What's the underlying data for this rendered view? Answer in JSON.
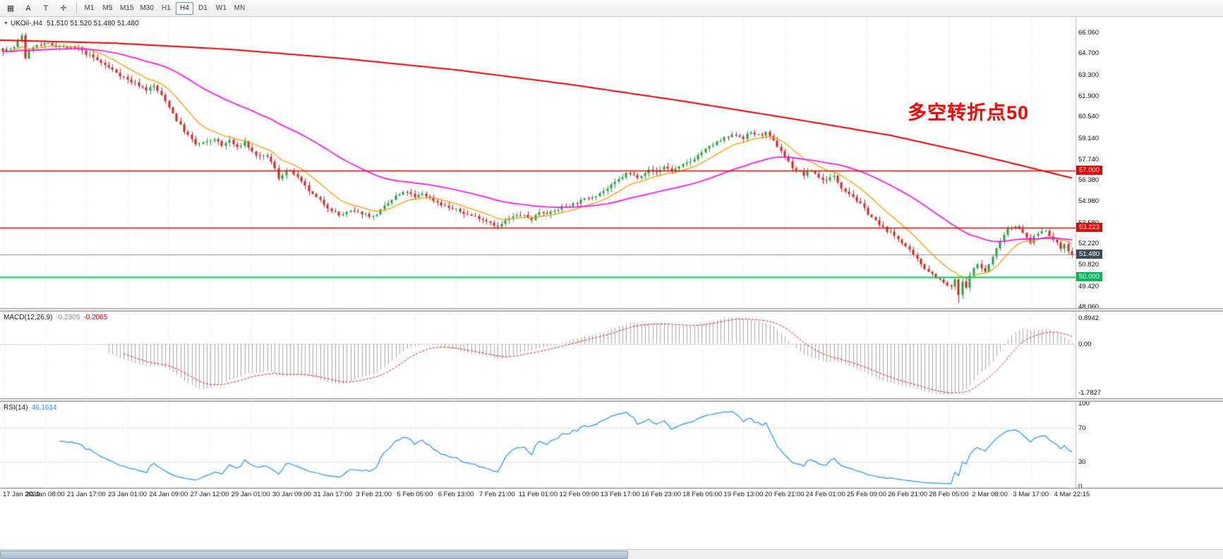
{
  "toolbar": {
    "tools": [
      {
        "name": "chart-windows-icon",
        "glyph": "▦"
      },
      {
        "name": "cursor-tool-icon",
        "glyph": "A"
      },
      {
        "name": "text-tool-icon",
        "glyph": "T"
      },
      {
        "name": "crosshair-tool-icon",
        "glyph": "✛"
      }
    ],
    "timeframes": [
      "M1",
      "M5",
      "M15",
      "M30",
      "H1",
      "H4",
      "D1",
      "W1",
      "MN"
    ],
    "active_timeframe": "H4"
  },
  "chart": {
    "dropdown_glyph": "▼",
    "symbol_header": "UKOil-,H4",
    "ohlc": "51.510 51.520 51.480 51.480",
    "annotation": {
      "text": "多空转折点50",
      "color": "#ff0000"
    },
    "price_axis": [
      "66.060",
      "64.700",
      "63.300",
      "61.900",
      "60.540",
      "59.140",
      "57.740",
      "56.380",
      "54.980",
      "53.580",
      "52.220",
      "50.820",
      "49.420",
      "48.060"
    ],
    "levels": [
      {
        "value": 57.0,
        "label": "57.000",
        "color": "#e80000"
      },
      {
        "value": 53.223,
        "label": "53.223",
        "color": "#e80000"
      },
      {
        "value": 51.48,
        "label": "51.480",
        "color": "#3c4c5a"
      },
      {
        "value": 50.0,
        "label": "50.000",
        "color": "#00b85c"
      }
    ]
  },
  "macd": {
    "header": "MACD(12,26,9)",
    "value1": "-0.2305",
    "value2": "-0.2065",
    "axis_top": "0.8942",
    "axis_zero": "0.00",
    "axis_bottom": "-1.7827"
  },
  "rsi": {
    "header": "RSI(14)",
    "value": "46.1614",
    "axis": [
      "100",
      "70",
      "30",
      "0"
    ],
    "levels": [
      70,
      30
    ]
  },
  "time_axis": {
    "labels": [
      "17 Jan 2020",
      "20 Jan 08:00",
      "21 Jan 17:00",
      "23 Jan 01:00",
      "24 Jan 09:00",
      "27 Jan 12:00",
      "29 Jan 01:00",
      "30 Jan 09:00",
      "31 Jan 17:00",
      "3 Feb 21:00",
      "5 Feb 05:00",
      "6 Feb 13:00",
      "7 Feb 21:00",
      "11 Feb 01:00",
      "12 Feb 09:00",
      "13 Feb 17:00",
      "16 Feb 23:00",
      "18 Feb 05:00",
      "19 Feb 13:00",
      "20 Feb 21:00",
      "24 Feb 01:00",
      "25 Feb 09:00",
      "26 Feb 21:00",
      "28 Feb 05:00",
      "2 Mar 08:00",
      "3 Mar 17:00",
      "4 Mar 22:15"
    ]
  },
  "chart_data": {
    "type": "candlestick",
    "symbol": "UKOil-",
    "timeframe": "H4",
    "bars": 284,
    "price_range": [
      48.06,
      66.06
    ],
    "current_price": 51.48,
    "horizontal_lines": [
      57.0,
      53.223,
      50.0
    ],
    "close_anchors": [
      [
        0,
        64.9
      ],
      [
        3,
        65.05
      ],
      [
        5,
        65.9
      ],
      [
        6,
        64.4
      ],
      [
        8,
        65.15
      ],
      [
        12,
        65.3
      ],
      [
        16,
        65.1
      ],
      [
        20,
        64.95
      ],
      [
        24,
        64.4
      ],
      [
        27,
        63.9
      ],
      [
        30,
        63.45
      ],
      [
        33,
        62.95
      ],
      [
        36,
        62.6
      ],
      [
        38,
        62.3
      ],
      [
        40,
        62.55
      ],
      [
        42,
        61.9
      ],
      [
        44,
        61.2
      ],
      [
        46,
        60.3
      ],
      [
        48,
        59.6
      ],
      [
        51,
        58.7
      ],
      [
        54,
        58.85
      ],
      [
        56,
        59.1
      ],
      [
        58,
        58.6
      ],
      [
        60,
        59.0
      ],
      [
        62,
        58.45
      ],
      [
        64,
        58.9
      ],
      [
        66,
        58.2
      ],
      [
        68,
        57.85
      ],
      [
        70,
        57.95
      ],
      [
        72,
        57.1
      ],
      [
        73,
        56.5
      ],
      [
        75,
        57.0
      ],
      [
        77,
        56.8
      ],
      [
        79,
        56.2
      ],
      [
        82,
        55.4
      ],
      [
        86,
        54.6
      ],
      [
        89,
        54.05
      ],
      [
        92,
        54.3
      ],
      [
        95,
        54.2
      ],
      [
        98,
        53.95
      ],
      [
        101,
        54.6
      ],
      [
        104,
        55.3
      ],
      [
        107,
        55.6
      ],
      [
        109,
        55.2
      ],
      [
        111,
        55.5
      ],
      [
        114,
        55.05
      ],
      [
        117,
        54.65
      ],
      [
        120,
        54.4
      ],
      [
        123,
        54.1
      ],
      [
        126,
        53.9
      ],
      [
        129,
        53.6
      ],
      [
        131,
        53.3
      ],
      [
        134,
        53.85
      ],
      [
        137,
        54.1
      ],
      [
        140,
        53.8
      ],
      [
        142,
        54.3
      ],
      [
        145,
        54.2
      ],
      [
        148,
        54.6
      ],
      [
        151,
        54.8
      ],
      [
        154,
        55.1
      ],
      [
        157,
        55.4
      ],
      [
        160,
        55.8
      ],
      [
        163,
        56.4
      ],
      [
        165,
        56.8
      ],
      [
        168,
        56.6
      ],
      [
        171,
        57.0
      ],
      [
        173,
        56.9
      ],
      [
        175,
        57.25
      ],
      [
        177,
        57.0
      ],
      [
        179,
        57.2
      ],
      [
        182,
        57.6
      ],
      [
        185,
        58.2
      ],
      [
        188,
        58.7
      ],
      [
        191,
        59.1
      ],
      [
        194,
        59.35
      ],
      [
        196,
        59.15
      ],
      [
        198,
        59.5
      ],
      [
        200,
        59.3
      ],
      [
        202,
        59.45
      ],
      [
        204,
        58.9
      ],
      [
        206,
        58.3
      ],
      [
        209,
        57.2
      ],
      [
        212,
        56.7
      ],
      [
        214,
        57.0
      ],
      [
        217,
        56.35
      ],
      [
        220,
        56.6
      ],
      [
        222,
        55.9
      ],
      [
        225,
        55.3
      ],
      [
        229,
        54.2
      ],
      [
        232,
        53.4
      ],
      [
        235,
        52.9
      ],
      [
        238,
        52.3
      ],
      [
        241,
        51.4
      ],
      [
        244,
        50.6
      ],
      [
        247,
        50.0
      ],
      [
        249,
        49.6
      ],
      [
        251,
        49.3
      ],
      [
        252,
        49.85
      ],
      [
        253,
        48.75
      ],
      [
        254,
        49.7
      ],
      [
        255,
        49.25
      ],
      [
        256,
        50.2
      ],
      [
        258,
        50.85
      ],
      [
        260,
        50.35
      ],
      [
        262,
        51.3
      ],
      [
        264,
        52.4
      ],
      [
        266,
        53.2
      ],
      [
        268,
        53.4
      ],
      [
        270,
        52.85
      ],
      [
        272,
        52.3
      ],
      [
        274,
        52.9
      ],
      [
        276,
        53.1
      ],
      [
        278,
        52.45
      ],
      [
        280,
        51.9
      ],
      [
        281,
        52.25
      ],
      [
        282,
        51.65
      ],
      [
        283,
        51.48
      ]
    ],
    "slow_ma_anchors": [
      [
        0,
        65.55
      ],
      [
        30,
        65.35
      ],
      [
        60,
        64.95
      ],
      [
        90,
        64.35
      ],
      [
        120,
        63.6
      ],
      [
        150,
        62.65
      ],
      [
        180,
        61.55
      ],
      [
        210,
        60.35
      ],
      [
        235,
        59.3
      ],
      [
        255,
        58.2
      ],
      [
        270,
        57.3
      ],
      [
        283,
        56.5
      ]
    ],
    "overlays": {
      "fast_ema_period": 12,
      "medium_ema_period": 50
    },
    "indicators": [
      {
        "name": "MACD",
        "params": "12,26,9",
        "current": [
          -0.2305,
          -0.2065
        ],
        "range": [
          -1.7827,
          0.8942
        ]
      },
      {
        "name": "RSI",
        "params": "14",
        "current": 46.1614,
        "range": [
          0,
          100
        ],
        "levels": [
          70,
          30
        ]
      }
    ],
    "colors": {
      "bull": "#1ea43c",
      "bear": "#dc1f1f",
      "fast_ma": "#ff9900",
      "medium_ma": "#ff00ff",
      "slow_ma": "#e60000",
      "macd_hist": "#a8a8a8",
      "macd_signal": "#ee1111",
      "rsi_line": "#1e90ff",
      "grid": "#dcdcdc",
      "level_red": "#e80000",
      "level_green": "#00cc55",
      "price_line": "#7d8f9f"
    }
  }
}
